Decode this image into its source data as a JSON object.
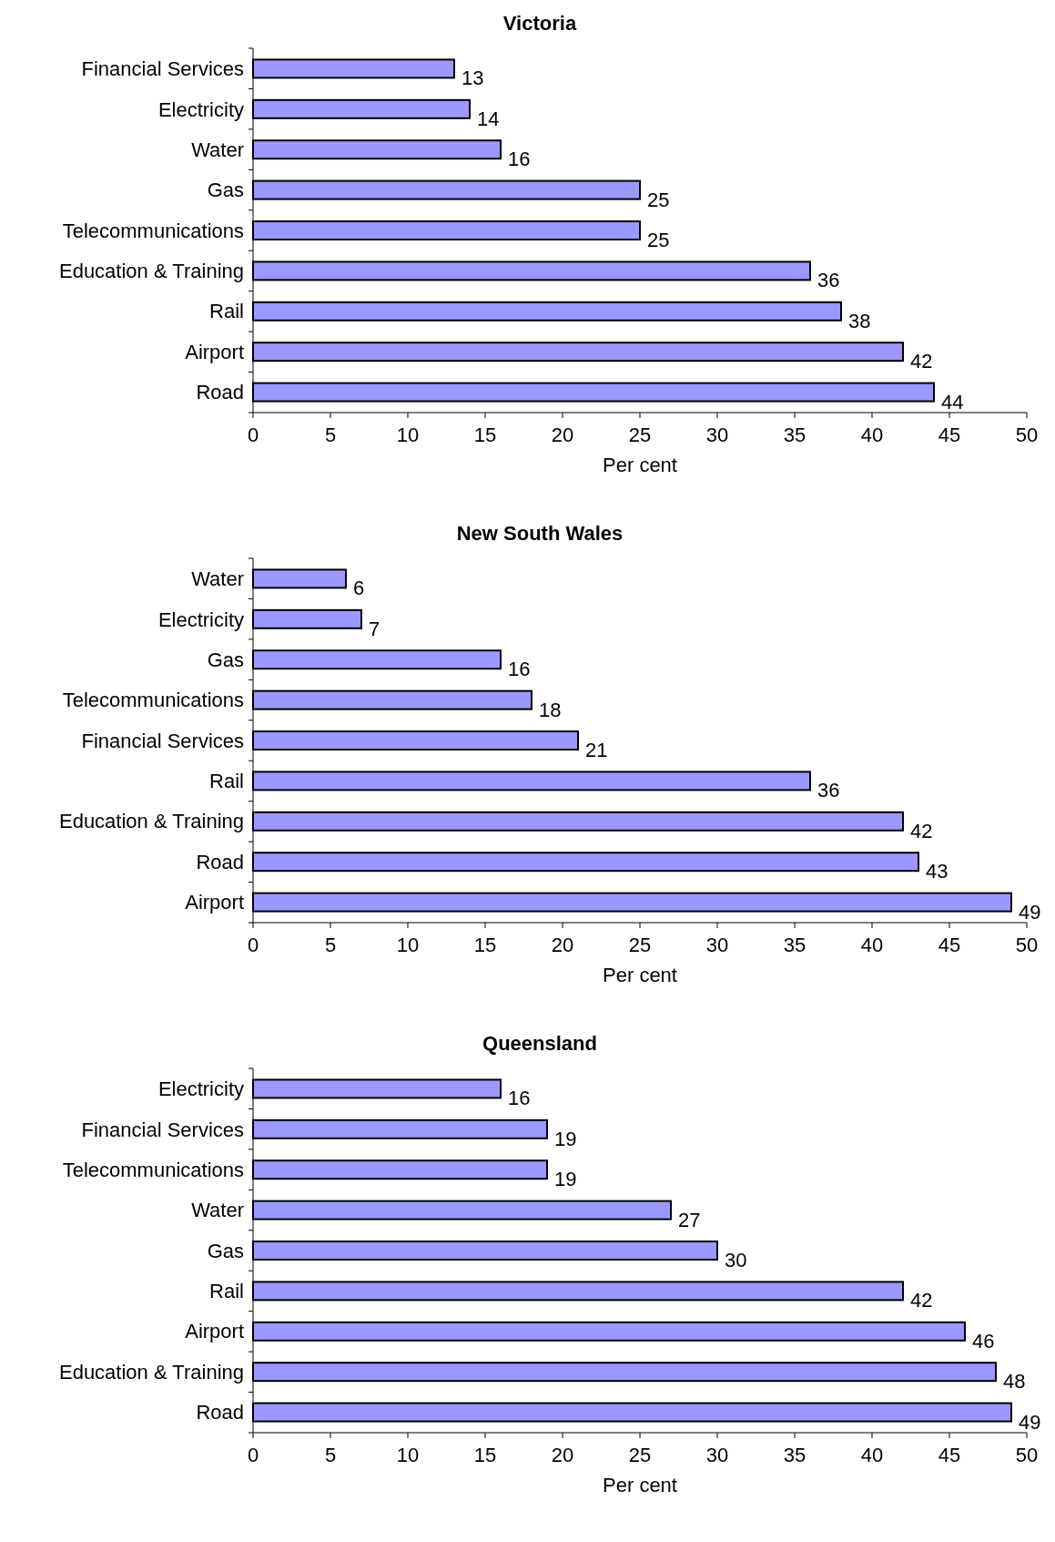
{
  "chart_data": [
    {
      "type": "bar",
      "orientation": "horizontal",
      "title": "Victoria",
      "xlabel": "Per cent",
      "categories": [
        "Financial Services",
        "Electricity",
        "Water",
        "Gas",
        "Telecommunications",
        "Education & Training",
        "Rail",
        "Airport",
        "Road"
      ],
      "values": [
        13,
        14,
        16,
        25,
        25,
        36,
        38,
        42,
        44
      ],
      "color": "#9999ff",
      "xlim": [
        0,
        50
      ],
      "xticks": [
        0,
        5,
        10,
        15,
        20,
        25,
        30,
        35,
        40,
        45,
        50
      ],
      "data_labels": true
    },
    {
      "type": "bar",
      "orientation": "horizontal",
      "title": "New South Wales",
      "xlabel": "Per cent",
      "categories": [
        "Water",
        "Electricity",
        "Gas",
        "Telecommunications",
        "Financial Services",
        "Rail",
        "Education & Training",
        "Road",
        "Airport"
      ],
      "values": [
        6,
        7,
        16,
        18,
        21,
        36,
        42,
        43,
        49
      ],
      "color": "#9999ff",
      "xlim": [
        0,
        50
      ],
      "xticks": [
        0,
        5,
        10,
        15,
        20,
        25,
        30,
        35,
        40,
        45,
        50
      ],
      "data_labels": true
    },
    {
      "type": "bar",
      "orientation": "horizontal",
      "title": "Queensland",
      "xlabel": "Per cent",
      "categories": [
        "Electricity",
        "Financial Services",
        "Telecommunications",
        "Water",
        "Gas",
        "Rail",
        "Airport",
        "Education & Training",
        "Road"
      ],
      "values": [
        16,
        19,
        19,
        27,
        30,
        42,
        46,
        48,
        49
      ],
      "color": "#9999ff",
      "xlim": [
        0,
        50
      ],
      "xticks": [
        0,
        5,
        10,
        15,
        20,
        25,
        30,
        35,
        40,
        45,
        50
      ],
      "data_labels": true
    }
  ]
}
